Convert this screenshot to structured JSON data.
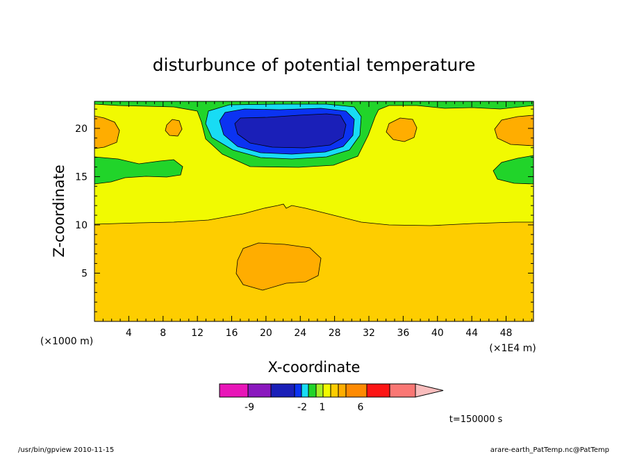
{
  "chart_data": {
    "type": "heatmap",
    "title": "disturbunce of potential temperature",
    "xlabel": "X-coordinate",
    "ylabel": "Z-coordinate",
    "x_unit_label": "(×1E4 m)",
    "y_unit_label": "(×1000 m)",
    "x_ticks": [
      4,
      8,
      12,
      16,
      20,
      24,
      28,
      32,
      36,
      40,
      44,
      48
    ],
    "y_ticks": [
      5,
      10,
      15,
      20
    ],
    "xlim": [
      0,
      51.2
    ],
    "ylim": [
      0,
      22.8
    ],
    "time_label": "t=150000 s",
    "colorbar": {
      "colors": [
        "#e815b8",
        "#8a18be",
        "#1a1fb8",
        "#0b33f2",
        "#18dcf4",
        "#21d42a",
        "#a7ef27",
        "#f1fa01",
        "#fecd00",
        "#ffad00",
        "#fe8a02",
        "#fd1515",
        "#fa7774",
        "#f9bdbd"
      ],
      "labels": [
        {
          "text": "-9",
          "value": -9
        },
        {
          "text": "-2",
          "value": -2
        },
        {
          "text": "1",
          "value": 1
        },
        {
          "text": "6",
          "value": 6
        }
      ]
    },
    "regions": [
      {
        "name": "background",
        "color": "#fecd00"
      },
      {
        "name": "upper-band",
        "color": "#f1fa01"
      },
      {
        "name": "upper-layer",
        "color": "#21d42a"
      },
      {
        "name": "left-warm-blob",
        "color": "#ffad00"
      },
      {
        "name": "right-warm-blob",
        "color": "#ffad00"
      },
      {
        "name": "mid-warm-blob",
        "color": "#ffad00"
      },
      {
        "name": "small-warm-blob",
        "color": "#ffad00"
      },
      {
        "name": "lower-warm-blob",
        "color": "#ffad00"
      },
      {
        "name": "left-green-blob",
        "color": "#21d42a"
      },
      {
        "name": "right-green-blob",
        "color": "#21d42a"
      },
      {
        "name": "cold-cyan",
        "color": "#18dcf4"
      },
      {
        "name": "cold-blue",
        "color": "#0b33f2"
      },
      {
        "name": "cold-core",
        "color": "#1a1fb8"
      }
    ]
  },
  "footer": {
    "left": "/usr/bin/gpview   2010-11-15",
    "right": "arare-earth_PatTemp.nc@PatTemp"
  }
}
